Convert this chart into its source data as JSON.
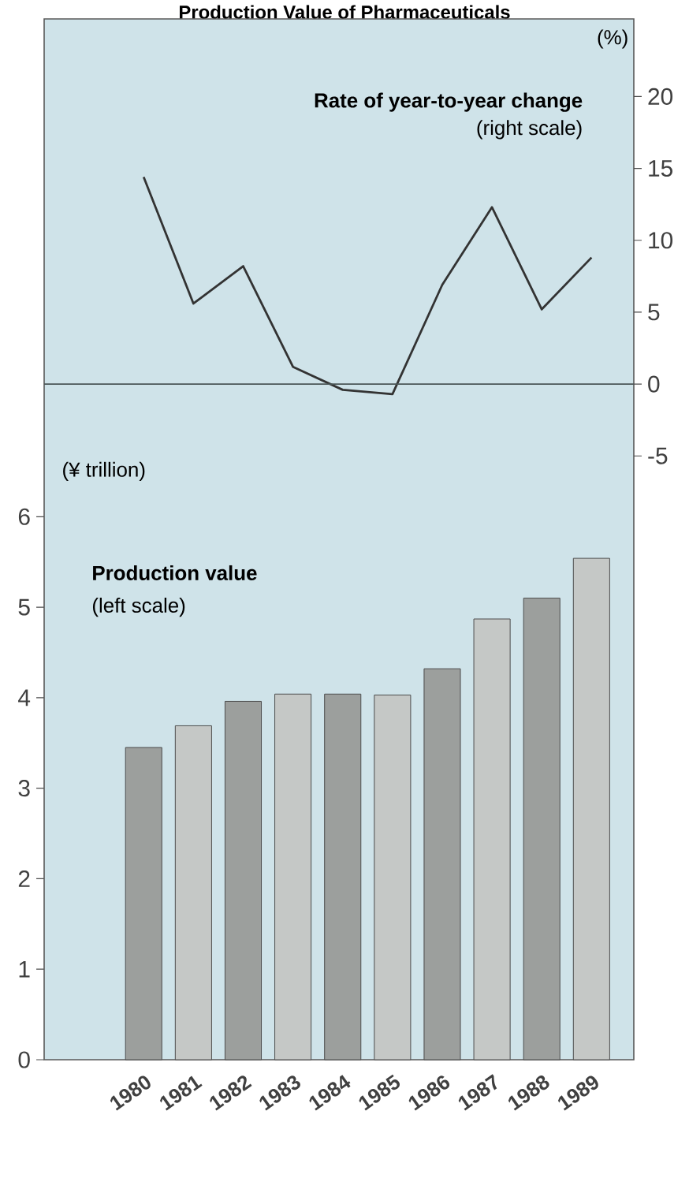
{
  "chart_data": {
    "type": "bar",
    "title": "Production Value of Pharmaceuticals",
    "categories": [
      "1980",
      "1981",
      "1982",
      "1983",
      "1984",
      "1985",
      "1986",
      "1987",
      "1988",
      "1989"
    ],
    "series": [
      {
        "colors": [
          "#9c9f9d",
          "#c5c8c6",
          "#9c9f9d",
          "#c5c8c6",
          "#9c9f9d",
          "#c5c8c6",
          "#9c9f9d",
          "#c5c8c6",
          "#9c9f9d",
          "#c5c8c6"
        ],
        "values": [
          3.45,
          3.69,
          3.96,
          4.04,
          4.04,
          4.03,
          4.32,
          4.87,
          5.1,
          5.54
        ]
      },
      {
        "type": "line",
        "axis": "y2",
        "color": "#333333",
        "values": [
          14.4,
          5.6,
          8.2,
          1.2,
          -0.4,
          -0.7,
          6.9,
          12.3,
          5.2,
          8.8
        ]
      }
    ],
    "ylabel": "(¥ trillion)",
    "y2label": "(%)",
    "annotations": [
      "Production value",
      "(left scale)",
      "Rate of year-to-year change",
      "(right scale)"
    ],
    "ylim": [
      0,
      11.5
    ],
    "yticks": [
      0,
      1,
      2,
      3,
      4,
      5,
      6
    ],
    "y2lim": [
      -47,
      25.4
    ],
    "y2ticks": [
      -5,
      0,
      5,
      10,
      15,
      20
    ],
    "ref_lines": [
      {
        "axis": "y2",
        "value": 0,
        "color": "#4a5656"
      }
    ],
    "grid": false
  }
}
